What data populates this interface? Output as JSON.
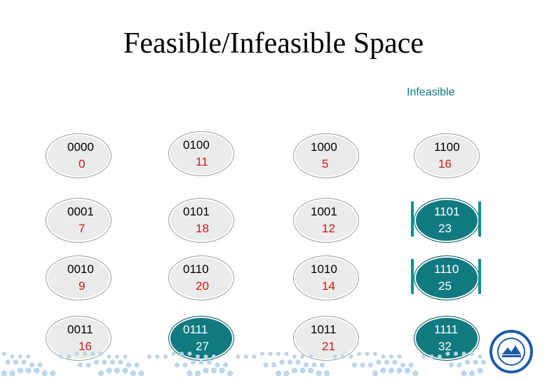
{
  "title": "Feasible/Infeasible Space",
  "legend": {
    "label": "Infeasible",
    "color": "#0a7a86"
  },
  "colors": {
    "node_fill": "#e9ecea",
    "infeasible_fill": "#117a80",
    "value_text": "#d01818",
    "dots": "#bcd6ea"
  },
  "columns": [
    [
      {
        "bin": "0000",
        "val": "0",
        "infeasible": false
      },
      {
        "bin": "0001",
        "val": "7",
        "infeasible": false
      },
      {
        "bin": "0010",
        "val": "9",
        "infeasible": false
      },
      {
        "bin": "0011",
        "val": "16",
        "infeasible": false
      }
    ],
    [
      {
        "bin": "0100",
        "val": "11",
        "infeasible": false
      },
      {
        "bin": "0101",
        "val": "18",
        "infeasible": false
      },
      {
        "bin": "0110",
        "val": "20",
        "infeasible": false
      },
      {
        "bin": "0111",
        "val": "27",
        "infeasible": true
      }
    ],
    [
      {
        "bin": "1000",
        "val": "5",
        "infeasible": false
      },
      {
        "bin": "1001",
        "val": "12",
        "infeasible": false
      },
      {
        "bin": "1010",
        "val": "14",
        "infeasible": false
      },
      {
        "bin": "1011",
        "val": "21",
        "infeasible": false
      }
    ],
    [
      {
        "bin": "1100",
        "val": "16",
        "infeasible": false
      },
      {
        "bin": "1101",
        "val": "23",
        "infeasible": true
      },
      {
        "bin": "1110",
        "val": "25",
        "infeasible": true
      },
      {
        "bin": "1111",
        "val": "32",
        "infeasible": true
      }
    ]
  ]
}
